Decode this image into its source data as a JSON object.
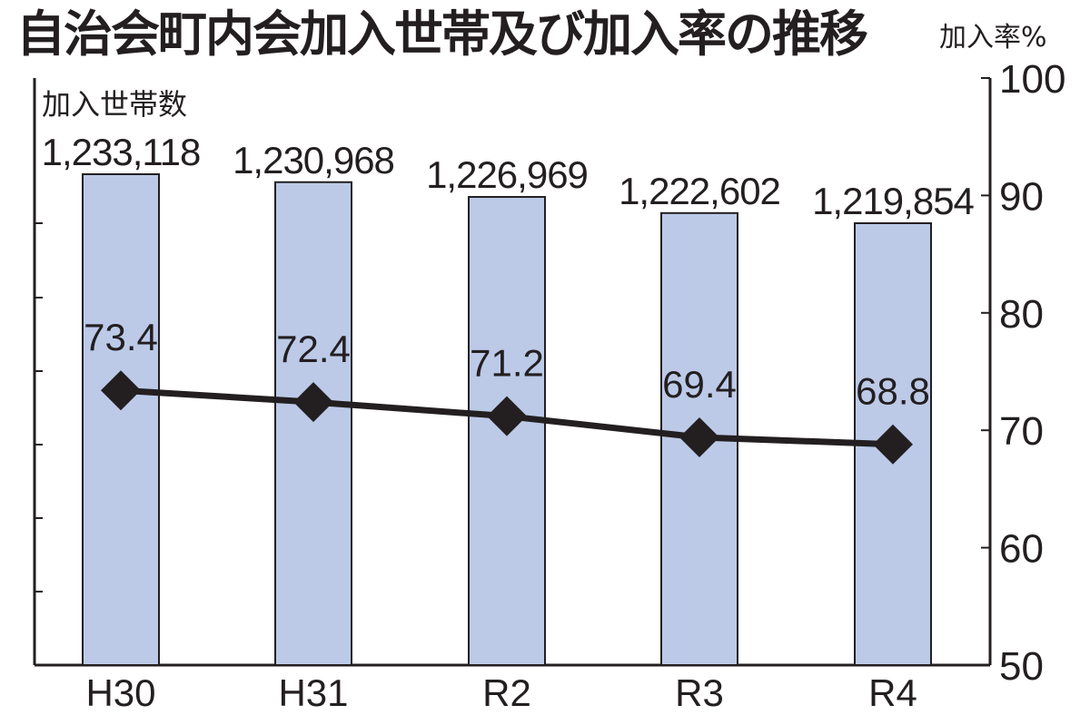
{
  "title": "自治会町内会加入世帯及び加入率の推移",
  "chart_data": {
    "type": "bar",
    "categories": [
      "H30",
      "H31",
      "R2",
      "R3",
      "R4"
    ],
    "series": [
      {
        "name": "加入世帯数",
        "type": "bar",
        "axis": "left",
        "values": [
          1233118,
          1230968,
          1226969,
          1222602,
          1219854
        ],
        "labels": [
          "1,233,118",
          "1,230,968",
          "1,226,969",
          "1,222,602",
          "1,219,854"
        ],
        "color": "#bccae8"
      },
      {
        "name": "加入率",
        "type": "line",
        "axis": "right",
        "values": [
          73.4,
          72.4,
          71.2,
          69.4,
          68.8
        ],
        "labels": [
          "73.4",
          "72.4",
          "71.2",
          "69.4",
          "68.8"
        ],
        "color": "#231f20",
        "marker": "diamond"
      }
    ],
    "y_left": {
      "label": "加入世帯数"
    },
    "y_right": {
      "label": "加入率%",
      "ylim": [
        50,
        100
      ],
      "ticks": [
        50,
        60,
        70,
        80,
        90,
        100
      ]
    }
  }
}
